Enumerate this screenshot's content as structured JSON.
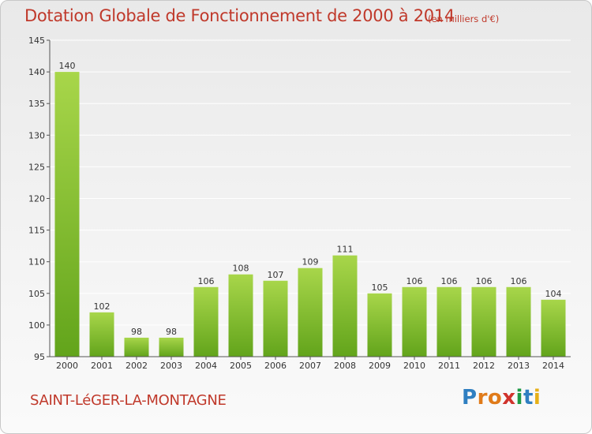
{
  "title": "Dotation Globale de Fonctionnement de 2000 à 2014",
  "unit_note": "(en milliers d'€)",
  "commune": "SAINT-LéGER-LA-MONTAGNE",
  "brand": {
    "letters": [
      "P",
      "r",
      "o",
      "x",
      "i",
      "t",
      "i"
    ],
    "letter_colors": [
      "#2f7fc1",
      "#e07b1a",
      "#e07b1a",
      "#d0332c",
      "#1e9a46",
      "#2f7fc1",
      "#e6b018"
    ]
  },
  "colors": {
    "bar_light": "#a8d64a",
    "bar_dark": "#62a41b",
    "axis": "#555555",
    "text": "#333333",
    "grid": "#ffffff"
  },
  "chart_data": {
    "type": "bar",
    "title": "Dotation Globale de Fonctionnement de 2000 à 2014",
    "subtitle": "(en milliers d'€)",
    "xlabel": "",
    "ylabel": "",
    "categories": [
      "2000",
      "2001",
      "2002",
      "2003",
      "2004",
      "2005",
      "2006",
      "2007",
      "2008",
      "2009",
      "2010",
      "2011",
      "2012",
      "2013",
      "2014"
    ],
    "values": [
      140,
      102,
      98,
      98,
      106,
      108,
      107,
      109,
      111,
      105,
      106,
      106,
      106,
      106,
      104
    ],
    "ylim": [
      95,
      145
    ],
    "yticks": [
      95,
      100,
      105,
      110,
      115,
      120,
      125,
      130,
      135,
      140,
      145
    ],
    "grid": true,
    "data_labels": true
  }
}
